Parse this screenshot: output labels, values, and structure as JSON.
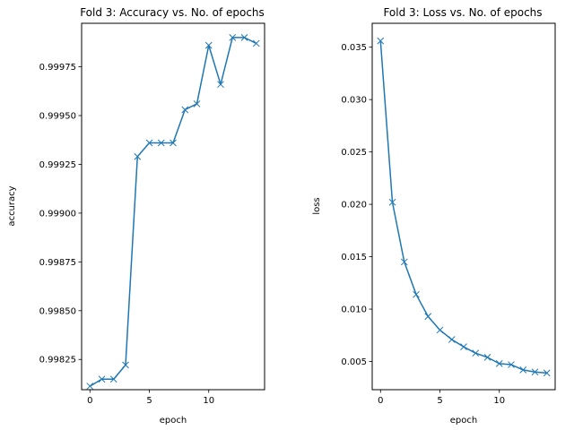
{
  "chart_data": [
    {
      "type": "line",
      "title": "Fold 3: Accuracy vs. No. of epochs",
      "xlabel": "epoch",
      "ylabel": "accuracy",
      "xlim": [
        -0.7,
        14.7
      ],
      "ylim": [
        0.998095,
        0.999973
      ],
      "xticks": [
        0,
        5,
        10
      ],
      "xtick_labels": [
        "0",
        "5",
        "10"
      ],
      "yticks": [
        0.99825,
        0.9985,
        0.99875,
        0.999,
        0.99925,
        0.9995,
        0.99975
      ],
      "ytick_labels": [
        "0.99825",
        "0.99850",
        "0.99875",
        "0.99900",
        "0.99925",
        "0.99950",
        "0.99975"
      ],
      "grid": false,
      "marker": "x",
      "color": "#1f77b4",
      "x": [
        0,
        1,
        2,
        3,
        4,
        5,
        6,
        7,
        8,
        9,
        10,
        11,
        12,
        13,
        14
      ],
      "y": [
        0.998113,
        0.998149,
        0.998149,
        0.998222,
        0.99929,
        0.99936,
        0.99936,
        0.99936,
        0.99953,
        0.99956,
        0.99986,
        0.99966,
        0.9999,
        0.9999,
        0.99987
      ]
    },
    {
      "type": "line",
      "title": "Fold 3: Loss vs. No. of epochs",
      "xlabel": "epoch",
      "ylabel": "loss",
      "xlim": [
        -0.7,
        14.7
      ],
      "ylim": [
        0.00231,
        0.03728
      ],
      "xticks": [
        0,
        5,
        10
      ],
      "xtick_labels": [
        "0",
        "5",
        "10"
      ],
      "yticks": [
        0.005,
        0.01,
        0.015,
        0.02,
        0.025,
        0.03,
        0.035
      ],
      "ytick_labels": [
        "0.005",
        "0.010",
        "0.015",
        "0.020",
        "0.025",
        "0.030",
        "0.035"
      ],
      "grid": false,
      "marker": "x",
      "color": "#1f77b4",
      "x": [
        0,
        1,
        2,
        3,
        4,
        5,
        6,
        7,
        8,
        9,
        10,
        11,
        12,
        13,
        14
      ],
      "y": [
        0.0356,
        0.0202,
        0.0145,
        0.0114,
        0.0093,
        0.008,
        0.0071,
        0.0064,
        0.0058,
        0.0054,
        0.0048,
        0.0047,
        0.0042,
        0.004,
        0.0039
      ]
    }
  ]
}
